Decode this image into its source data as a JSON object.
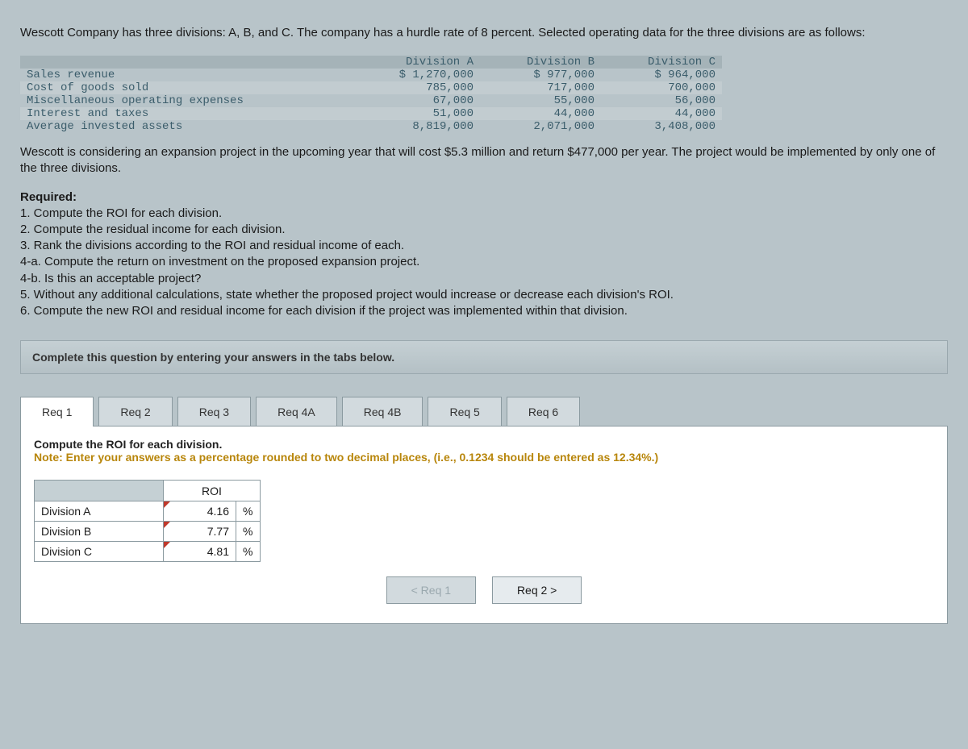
{
  "intro": "Wescott Company has three divisions: A, B, and C. The company has a hurdle rate of 8 percent. Selected operating data for the three divisions are as follows:",
  "data_table": {
    "col_headers": [
      "Division A",
      "Division B",
      "Division C"
    ],
    "rows": [
      {
        "label": "Sales revenue",
        "a": "$ 1,270,000",
        "b": "$ 977,000",
        "c": "$ 964,000"
      },
      {
        "label": "Cost of goods sold",
        "a": "785,000",
        "b": "717,000",
        "c": "700,000"
      },
      {
        "label": "Miscellaneous operating expenses",
        "a": "67,000",
        "b": "55,000",
        "c": "56,000"
      },
      {
        "label": "Interest and taxes",
        "a": "51,000",
        "b": "44,000",
        "c": "44,000"
      },
      {
        "label": "Average invested assets",
        "a": "8,819,000",
        "b": "2,071,000",
        "c": "3,408,000"
      }
    ]
  },
  "midtext": "Wescott is considering an expansion project in the upcoming year that will cost $5.3 million and return $477,000 per year. The project would be implemented by only one of the three divisions.",
  "required": {
    "heading": "Required:",
    "items": [
      "1. Compute the ROI for each division.",
      "2. Compute the residual income for each division.",
      "3. Rank the divisions according to the ROI and residual income of each.",
      "4-a. Compute the return on investment on the proposed expansion project.",
      "4-b. Is this an acceptable project?",
      "5. Without any additional calculations, state whether the proposed project would increase or decrease each division's ROI.",
      "6. Compute the new ROI and residual income for each division if the project was implemented within that division."
    ]
  },
  "instruction": "Complete this question by entering your answers in the tabs below.",
  "tabs": [
    "Req 1",
    "Req 2",
    "Req 3",
    "Req 4A",
    "Req 4B",
    "Req 5",
    "Req 6"
  ],
  "active_tab": 0,
  "panel": {
    "title": "Compute the ROI for each division.",
    "note": "Note: Enter your answers as a percentage rounded to two decimal places, (i.e., 0.1234 should be entered as 12.34%.)",
    "col_header": "ROI",
    "rows": [
      {
        "label": "Division A",
        "value": "4.16",
        "unit": "%"
      },
      {
        "label": "Division B",
        "value": "7.77",
        "unit": "%"
      },
      {
        "label": "Division C",
        "value": "4.81",
        "unit": "%"
      }
    ]
  },
  "nav": {
    "prev": "< Req 1",
    "next": "Req 2  >"
  }
}
